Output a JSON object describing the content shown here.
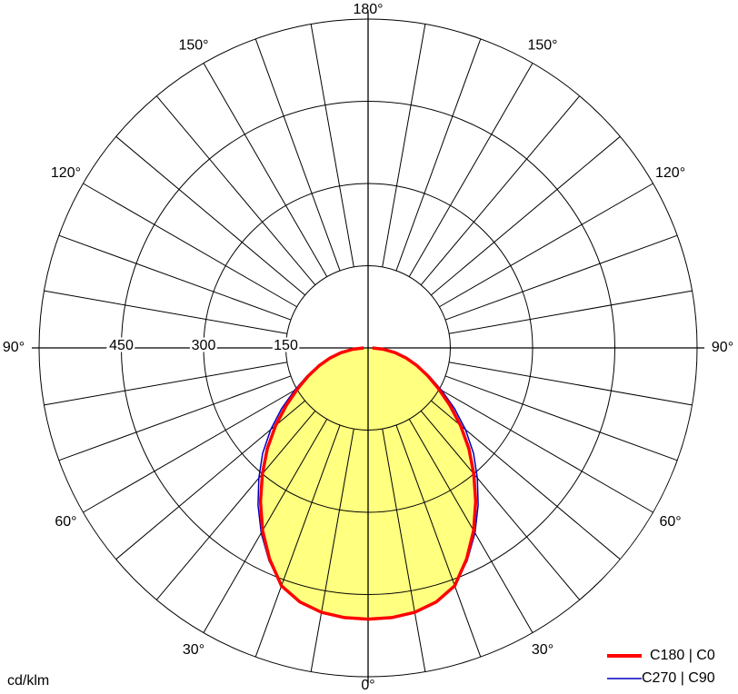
{
  "chart_data": {
    "type": "polar",
    "unit_label": "cd/klm",
    "rlim": [
      0,
      600
    ],
    "rticks": [
      150,
      300,
      450
    ],
    "angle_ticks": [
      {
        "value": 0,
        "label": "0°"
      },
      {
        "value": 30,
        "label": "30°"
      },
      {
        "value": 60,
        "label": "60°"
      },
      {
        "value": 90,
        "label": "90°"
      },
      {
        "value": 120,
        "label": "120°"
      },
      {
        "value": 150,
        "label": "150°"
      },
      {
        "value": 180,
        "label": "180°"
      }
    ],
    "x": [
      0,
      5,
      10,
      15,
      20,
      25,
      30,
      35,
      40,
      45,
      50,
      55,
      60,
      65,
      70,
      75,
      80,
      85,
      90
    ],
    "series": [
      {
        "name": "C180 | C0",
        "color": "#ff0000",
        "fill": "#ffff80",
        "values": [
          495,
          494,
          490,
          480,
          462,
          425,
          385,
          342,
          300,
          260,
          220,
          182,
          148,
          120,
          95,
          72,
          50,
          28,
          8
        ]
      },
      {
        "name": "C270 | C90",
        "color": "#0000c0",
        "values": [
          495,
          494,
          490,
          480,
          462,
          428,
          390,
          350,
          310,
          272,
          232,
          192,
          155,
          124,
          97,
          73,
          50,
          28,
          8
        ]
      }
    ]
  }
}
